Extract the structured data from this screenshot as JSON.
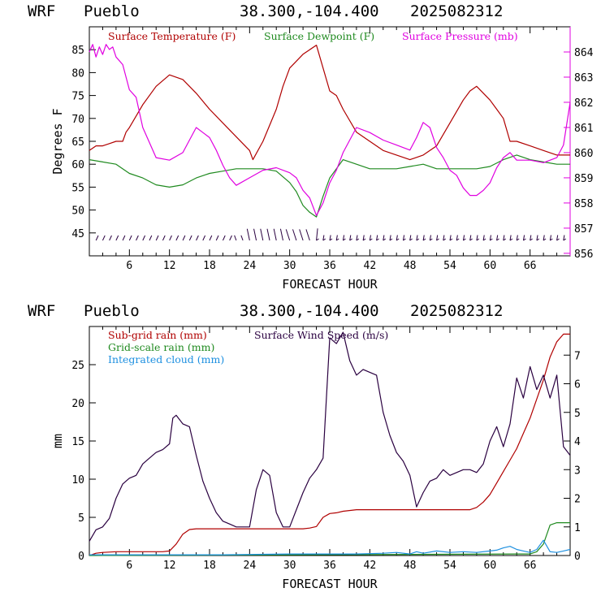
{
  "colors": {
    "temperature": "#b00000",
    "dewpoint": "#1f8a1f",
    "pressure": "#e000e0",
    "subgrid_rain": "#b00000",
    "gridscale_rain": "#1f8a1f",
    "cloud": "#1e90e0",
    "wind_speed": "#2a0040",
    "barbs": "#2a0040"
  },
  "panels": [
    {
      "header": {
        "model": "WRF",
        "station": "Pueblo",
        "coords": "38.300,-104.400",
        "run": "2025082312"
      },
      "xlabel": "FORECAST HOUR",
      "ylabel_left": "Degrees F",
      "legend": [
        "Surface Temperature (F)",
        "Surface Dewpoint (F)",
        "Surface Pressure (mb)"
      ]
    },
    {
      "header": {
        "model": "WRF",
        "station": "Pueblo",
        "coords": "38.300,-104.400",
        "run": "2025082312"
      },
      "xlabel": "FORECAST HOUR",
      "ylabel_left": "mm",
      "legend": [
        "Sub-grid rain (mm)",
        "Surface Wind Speed (m/s)",
        "Grid-scale rain (mm)",
        "Integrated cloud (mm)"
      ]
    }
  ],
  "chart_data": [
    {
      "type": "line",
      "xlim": [
        0,
        72
      ],
      "xticks": [
        "6",
        "12",
        "18",
        "24",
        "30",
        "36",
        "42",
        "48",
        "54",
        "60",
        "66"
      ],
      "ylim_left": [
        40,
        90
      ],
      "yticks_left": [
        "45",
        "50",
        "55",
        "60",
        "65",
        "70",
        "75",
        "80",
        "85"
      ],
      "ylim_right": [
        855.9,
        865.0
      ],
      "yticks_right": [
        "856",
        "857",
        "858",
        "859",
        "860",
        "861",
        "862",
        "863",
        "864"
      ],
      "series": [
        {
          "name": "Surface Temperature (F)",
          "axis": "left",
          "x": [
            0,
            1,
            2,
            3,
            4,
            5,
            5.5,
            6,
            8,
            10,
            12,
            14,
            16,
            18,
            20,
            22,
            24,
            24.5,
            26,
            28,
            29,
            30,
            32,
            33,
            34,
            35,
            36,
            37,
            38,
            40,
            42,
            44,
            46,
            48,
            50,
            52,
            54,
            56,
            57,
            58,
            60,
            61,
            62,
            63,
            64,
            66,
            68,
            70,
            72
          ],
          "y": [
            63,
            64,
            64,
            64.5,
            65,
            65,
            67,
            68,
            73,
            77,
            79.5,
            78.5,
            75.5,
            72,
            69,
            66,
            63,
            61,
            65,
            72,
            77,
            81,
            84,
            85,
            86,
            81,
            76,
            75,
            72,
            67,
            65,
            63,
            62,
            61,
            62,
            64,
            69,
            74,
            76,
            77,
            74,
            72,
            70,
            65,
            65,
            64,
            63,
            62,
            62
          ]
        },
        {
          "name": "Surface Dewpoint (F)",
          "axis": "left",
          "x": [
            0,
            2,
            4,
            6,
            8,
            10,
            12,
            14,
            16,
            18,
            20,
            22,
            24,
            26,
            28,
            30,
            31,
            32,
            33,
            34,
            35,
            36,
            37,
            38,
            40,
            42,
            44,
            46,
            48,
            50,
            52,
            54,
            56,
            58,
            60,
            62,
            64,
            66,
            68,
            70,
            72
          ],
          "y": [
            61,
            60.5,
            60,
            58,
            57,
            55.5,
            55,
            55.5,
            57,
            58,
            58.5,
            59,
            59,
            59,
            58.5,
            56,
            54,
            51,
            49.5,
            48.5,
            53,
            57,
            59,
            61,
            60,
            59,
            59,
            59,
            59.5,
            60,
            59,
            59,
            59,
            59,
            59.5,
            61,
            62,
            61,
            60.5,
            60,
            60
          ]
        },
        {
          "name": "Surface Pressure (mb)",
          "axis": "right",
          "x": [
            0,
            0.5,
            1,
            1.5,
            2,
            2.5,
            3,
            3.5,
            4,
            5,
            6,
            7,
            8,
            10,
            12,
            14,
            15,
            16,
            17,
            18,
            19,
            20,
            21,
            22,
            24,
            26,
            28,
            30,
            31,
            32,
            33,
            34,
            35,
            36,
            37,
            38,
            40,
            42,
            44,
            46,
            48,
            49,
            50,
            51,
            52,
            53,
            54,
            55,
            56,
            57,
            58,
            59,
            60,
            61,
            62,
            63,
            64,
            66,
            68,
            70,
            71,
            72
          ],
          "y": [
            864,
            864.3,
            863.8,
            864.2,
            863.9,
            864.3,
            864.1,
            864.2,
            863.8,
            863.5,
            862.5,
            862.2,
            861,
            859.8,
            859.7,
            860,
            860.5,
            861,
            860.8,
            860.6,
            860.1,
            859.5,
            859,
            858.7,
            859,
            859.3,
            859.4,
            859.2,
            859,
            858.5,
            858.2,
            857.5,
            858,
            858.8,
            859.3,
            860,
            861,
            860.8,
            860.5,
            860.3,
            860.1,
            860.6,
            861.2,
            861,
            860.2,
            859.8,
            859.3,
            859.1,
            858.6,
            858.3,
            858.3,
            858.5,
            858.8,
            859.4,
            859.8,
            860,
            859.7,
            859.7,
            859.6,
            859.8,
            860.3,
            862
          ]
        }
      ]
    },
    {
      "type": "line",
      "xlim": [
        0,
        72
      ],
      "xticks": [
        "6",
        "12",
        "18",
        "24",
        "30",
        "36",
        "42",
        "48",
        "54",
        "60",
        "66"
      ],
      "ylim_left": [
        0,
        30
      ],
      "yticks_left": [
        "0",
        "5",
        "10",
        "15",
        "20",
        "25"
      ],
      "ylim_right": [
        0,
        8
      ],
      "yticks_right": [
        "0",
        "1",
        "2",
        "3",
        "4",
        "5",
        "6",
        "7"
      ],
      "series": [
        {
          "name": "Sub-grid rain (mm)",
          "axis": "left",
          "x": [
            0,
            1,
            2,
            4,
            6,
            8,
            10,
            11,
            12,
            13,
            14,
            15,
            16,
            18,
            20,
            22,
            24,
            26,
            28,
            30,
            32,
            33,
            34,
            35,
            36,
            37,
            38,
            40,
            42,
            44,
            46,
            48,
            50,
            52,
            54,
            56,
            57,
            58,
            59,
            60,
            61,
            62,
            63,
            64,
            65,
            66,
            67,
            68,
            69,
            70,
            71,
            72
          ],
          "y": [
            0,
            0.3,
            0.4,
            0.5,
            0.5,
            0.5,
            0.5,
            0.5,
            0.6,
            1.5,
            2.8,
            3.4,
            3.5,
            3.5,
            3.5,
            3.5,
            3.5,
            3.5,
            3.5,
            3.5,
            3.5,
            3.6,
            3.8,
            5,
            5.5,
            5.6,
            5.8,
            6,
            6,
            6,
            6,
            6,
            6,
            6,
            6,
            6,
            6,
            6.3,
            7,
            8,
            9.5,
            11,
            12.5,
            14,
            16,
            18,
            20.5,
            23,
            26,
            28,
            29,
            29
          ]
        },
        {
          "name": "Grid-scale rain (mm)",
          "axis": "left",
          "x": [
            0,
            66,
            67,
            68,
            69,
            70,
            72
          ],
          "y": [
            0,
            0.2,
            0.5,
            1.5,
            4,
            4.3,
            4.3
          ]
        },
        {
          "name": "Integrated cloud (mm)",
          "axis": "left",
          "x": [
            0,
            20,
            30,
            40,
            44,
            46,
            48,
            49,
            50,
            52,
            54,
            56,
            58,
            60,
            61,
            62,
            63,
            64,
            65,
            66,
            67,
            68,
            69,
            70,
            71,
            72
          ],
          "y": [
            0.1,
            0.1,
            0.2,
            0.2,
            0.3,
            0.4,
            0.2,
            0.5,
            0.3,
            0.6,
            0.4,
            0.5,
            0.4,
            0.6,
            0.7,
            1,
            1.2,
            0.8,
            0.6,
            0.4,
            0.8,
            2,
            0.5,
            0.4,
            0.6,
            0.8
          ]
        },
        {
          "name": "Surface Wind Speed (m/s)",
          "axis": "right",
          "x": [
            0,
            1,
            2,
            3,
            4,
            5,
            6,
            7,
            8,
            9,
            10,
            11,
            12,
            12.5,
            13,
            14,
            15,
            16,
            17,
            18,
            19,
            20,
            21,
            22,
            23,
            24,
            25,
            26,
            27,
            28,
            29,
            30,
            31,
            32,
            33,
            34,
            35,
            36,
            37,
            38,
            39,
            40,
            41,
            42,
            43,
            44,
            45,
            46,
            47,
            48,
            49,
            50,
            51,
            52,
            53,
            54,
            55,
            56,
            57,
            58,
            59,
            60,
            61,
            62,
            63,
            64,
            65,
            66,
            67,
            68,
            69,
            70,
            71,
            72
          ],
          "y": [
            0.5,
            0.9,
            1,
            1.3,
            2,
            2.5,
            2.7,
            2.8,
            3.2,
            3.4,
            3.6,
            3.7,
            3.9,
            4.8,
            4.9,
            4.6,
            4.5,
            3.5,
            2.6,
            2,
            1.5,
            1.2,
            1.1,
            1,
            1,
            1,
            2.3,
            3,
            2.8,
            1.5,
            1,
            1,
            1.6,
            2.2,
            2.7,
            3,
            3.4,
            7.6,
            7.4,
            7.8,
            6.8,
            6.3,
            6.5,
            6.4,
            6.3,
            5,
            4.2,
            3.6,
            3.3,
            2.8,
            1.7,
            2.2,
            2.6,
            2.7,
            3,
            2.8,
            2.9,
            3,
            3,
            2.9,
            3.2,
            4,
            4.5,
            3.8,
            4.6,
            6.2,
            5.5,
            6.6,
            5.8,
            6.3,
            5.5,
            6.3,
            3.8,
            3.5
          ]
        }
      ]
    }
  ]
}
